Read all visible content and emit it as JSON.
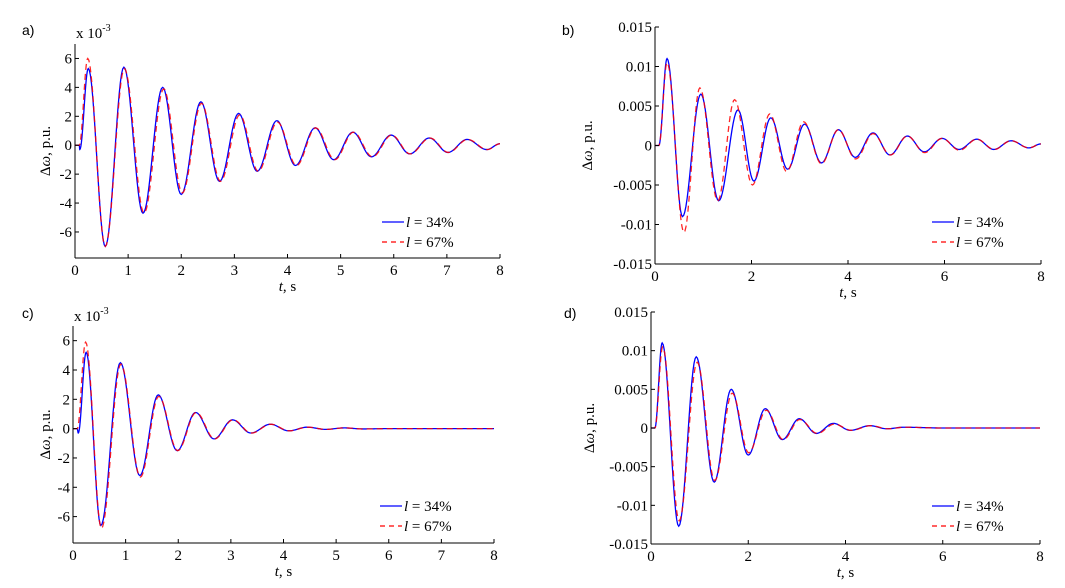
{
  "chart_data": [
    {
      "panel": "a)",
      "type": "line",
      "xlabel_italic": "t",
      "xlabel_rest": ", s",
      "ylabel_symbol": "Δω",
      "ylabel_rest": ", p.u.",
      "exponent_label": "x 10",
      "exponent": "-3",
      "xlim": [
        0,
        8
      ],
      "ylim": [
        -7.8,
        7
      ],
      "xticks": [
        0,
        1,
        2,
        3,
        4,
        5,
        6,
        7,
        8
      ],
      "yticks": [
        -6,
        -4,
        -2,
        0,
        2,
        4,
        6
      ],
      "ytick_labels": [
        "-6",
        "-4",
        "-2",
        "0",
        "2",
        "4",
        "6"
      ],
      "legend": {
        "position": "lower right",
        "entries": [
          "l = 34%",
          "l = 67%"
        ]
      },
      "series": [
        {
          "name": "l = 34%",
          "color": "#0000ff",
          "style": "solid",
          "points": [
            [
              0,
              0
            ],
            [
              0.08,
              0
            ],
            [
              0.09,
              -0.3
            ],
            [
              0.25,
              5.3
            ],
            [
              0.57,
              -7.0
            ],
            [
              0.92,
              5.4
            ],
            [
              1.28,
              -4.7
            ],
            [
              1.65,
              4.0
            ],
            [
              2.0,
              -3.4
            ],
            [
              2.37,
              3.0
            ],
            [
              2.72,
              -2.5
            ],
            [
              3.08,
              2.2
            ],
            [
              3.43,
              -1.8
            ],
            [
              3.8,
              1.7
            ],
            [
              4.15,
              -1.4
            ],
            [
              4.52,
              1.2
            ],
            [
              4.87,
              -1.0
            ],
            [
              5.23,
              0.9
            ],
            [
              5.58,
              -0.8
            ],
            [
              5.95,
              0.7
            ],
            [
              6.3,
              -0.6
            ],
            [
              6.67,
              0.5
            ],
            [
              7.02,
              -0.5
            ],
            [
              7.38,
              0.4
            ],
            [
              7.75,
              -0.3
            ],
            [
              8.0,
              0.1
            ]
          ]
        },
        {
          "name": "l = 67%",
          "color": "#ff0000",
          "style": "dashed",
          "points": [
            [
              0,
              0
            ],
            [
              0.08,
              0
            ],
            [
              0.24,
              6.0
            ],
            [
              0.57,
              -7.0
            ],
            [
              0.93,
              5.3
            ],
            [
              1.3,
              -4.7
            ],
            [
              1.67,
              3.9
            ],
            [
              2.02,
              -3.3
            ],
            [
              2.38,
              2.9
            ],
            [
              2.74,
              -2.5
            ],
            [
              3.1,
              2.1
            ],
            [
              3.45,
              -1.8
            ],
            [
              3.81,
              1.6
            ],
            [
              4.17,
              -1.4
            ],
            [
              4.53,
              1.2
            ],
            [
              4.89,
              -1.0
            ],
            [
              5.24,
              0.9
            ],
            [
              5.6,
              -0.8
            ],
            [
              5.96,
              0.7
            ],
            [
              6.31,
              -0.6
            ],
            [
              6.68,
              0.5
            ],
            [
              7.03,
              -0.5
            ],
            [
              7.39,
              0.4
            ],
            [
              7.76,
              -0.3
            ],
            [
              8.0,
              0.1
            ]
          ]
        }
      ]
    },
    {
      "panel": "b)",
      "type": "line",
      "xlabel_italic": "t",
      "xlabel_rest": ", s",
      "ylabel_symbol": "Δω",
      "ylabel_rest": ", p.u.",
      "xlim": [
        0,
        8
      ],
      "ylim": [
        -0.015,
        0.015
      ],
      "xticks": [
        0,
        2,
        4,
        6,
        8
      ],
      "yticks": [
        -0.015,
        -0.01,
        -0.005,
        0,
        0.005,
        0.01,
        0.015
      ],
      "ytick_labels": [
        "-0.015",
        "-0.01",
        "-0.005",
        "0",
        "0.005",
        "0.01",
        "0.015"
      ],
      "legend": {
        "position": "lower right",
        "entries": [
          "l = 34%",
          "l = 67%"
        ]
      },
      "series": [
        {
          "name": "l = 34%",
          "color": "#0000ff",
          "style": "solid",
          "points": [
            [
              0,
              0
            ],
            [
              0.08,
              0
            ],
            [
              0.25,
              0.011
            ],
            [
              0.57,
              -0.009
            ],
            [
              0.95,
              0.0065
            ],
            [
              1.32,
              -0.007
            ],
            [
              1.72,
              0.0045
            ],
            [
              2.05,
              -0.0045
            ],
            [
              2.4,
              0.0035
            ],
            [
              2.75,
              -0.003
            ],
            [
              3.1,
              0.0027
            ],
            [
              3.45,
              -0.0022
            ],
            [
              3.8,
              0.002
            ],
            [
              4.15,
              -0.0015
            ],
            [
              4.52,
              0.0016
            ],
            [
              4.87,
              -0.0012
            ],
            [
              5.23,
              0.0012
            ],
            [
              5.58,
              -0.0008
            ],
            [
              5.95,
              0.0009
            ],
            [
              6.3,
              -0.0005
            ],
            [
              6.67,
              0.0008
            ],
            [
              7.02,
              -0.0005
            ],
            [
              7.38,
              0.0006
            ],
            [
              7.75,
              -0.0003
            ],
            [
              8.0,
              0.0002
            ]
          ]
        },
        {
          "name": "l = 67%",
          "color": "#ff0000",
          "style": "dashed",
          "points": [
            [
              0,
              0
            ],
            [
              0.08,
              0
            ],
            [
              0.25,
              0.0105
            ],
            [
              0.6,
              -0.011
            ],
            [
              0.93,
              0.0073
            ],
            [
              1.3,
              -0.007
            ],
            [
              1.65,
              0.0058
            ],
            [
              2.02,
              -0.005
            ],
            [
              2.38,
              0.004
            ],
            [
              2.73,
              -0.0033
            ],
            [
              3.08,
              0.003
            ],
            [
              3.45,
              -0.0023
            ],
            [
              3.8,
              0.002
            ],
            [
              4.16,
              -0.0017
            ],
            [
              4.52,
              0.0015
            ],
            [
              4.88,
              -0.0012
            ],
            [
              5.23,
              0.0012
            ],
            [
              5.59,
              -0.0009
            ],
            [
              5.95,
              0.0009
            ],
            [
              6.31,
              -0.0006
            ],
            [
              6.67,
              0.0008
            ],
            [
              7.03,
              -0.0005
            ],
            [
              7.38,
              0.0006
            ],
            [
              7.75,
              -0.0003
            ],
            [
              8.0,
              0.0002
            ]
          ]
        }
      ]
    },
    {
      "panel": "c)",
      "type": "line",
      "xlabel_italic": "t",
      "xlabel_rest": ", s",
      "ylabel_symbol": "Δω",
      "ylabel_rest": ", p.u.",
      "exponent_label": "x 10",
      "exponent": "-3",
      "xlim": [
        0,
        8
      ],
      "ylim": [
        -7.8,
        7
      ],
      "xticks": [
        0,
        1,
        2,
        3,
        4,
        5,
        6,
        7,
        8
      ],
      "yticks": [
        -6,
        -4,
        -2,
        0,
        2,
        4,
        6
      ],
      "ytick_labels": [
        "-6",
        "-4",
        "-2",
        "0",
        "2",
        "4",
        "6"
      ],
      "legend": {
        "position": "lower right",
        "entries": [
          "l = 34%",
          "l = 67%"
        ]
      },
      "series": [
        {
          "name": "l = 34%",
          "color": "#0000ff",
          "style": "solid",
          "points": [
            [
              0,
              0
            ],
            [
              0.08,
              0
            ],
            [
              0.1,
              -0.3
            ],
            [
              0.25,
              5.2
            ],
            [
              0.53,
              -6.6
            ],
            [
              0.9,
              4.5
            ],
            [
              1.27,
              -3.2
            ],
            [
              1.62,
              2.3
            ],
            [
              1.98,
              -1.5
            ],
            [
              2.33,
              1.1
            ],
            [
              2.68,
              -0.7
            ],
            [
              3.03,
              0.6
            ],
            [
              3.38,
              -0.3
            ],
            [
              3.75,
              0.3
            ],
            [
              4.1,
              -0.15
            ],
            [
              4.45,
              0.1
            ],
            [
              4.8,
              -0.05
            ],
            [
              5.15,
              0.05
            ],
            [
              5.5,
              -0.02
            ],
            [
              6.0,
              0
            ],
            [
              8.0,
              0
            ]
          ]
        },
        {
          "name": "l = 67%",
          "color": "#ff0000",
          "style": "dashed",
          "points": [
            [
              0,
              0
            ],
            [
              0.08,
              0
            ],
            [
              0.24,
              5.9
            ],
            [
              0.54,
              -6.8
            ],
            [
              0.91,
              4.4
            ],
            [
              1.28,
              -3.3
            ],
            [
              1.63,
              2.2
            ],
            [
              1.99,
              -1.5
            ],
            [
              2.34,
              1.1
            ],
            [
              2.69,
              -0.7
            ],
            [
              3.04,
              0.6
            ],
            [
              3.39,
              -0.3
            ],
            [
              3.76,
              0.3
            ],
            [
              4.11,
              -0.15
            ],
            [
              4.46,
              0.1
            ],
            [
              4.81,
              -0.05
            ],
            [
              5.16,
              0.05
            ],
            [
              5.51,
              -0.02
            ],
            [
              6.0,
              0
            ],
            [
              8.0,
              0
            ]
          ]
        }
      ]
    },
    {
      "panel": "d)",
      "type": "line",
      "xlabel_italic": "t",
      "xlabel_rest": ", s",
      "ylabel_symbol": "Δω",
      "ylabel_rest": ", p.u.",
      "xlim": [
        0,
        8
      ],
      "ylim": [
        -0.015,
        0.015
      ],
      "xticks": [
        0,
        2,
        4,
        6,
        8
      ],
      "yticks": [
        -0.015,
        -0.01,
        -0.005,
        0,
        0.005,
        0.01,
        0.015
      ],
      "ytick_labels": [
        "-0.015",
        "-0.01",
        "-0.005",
        "0",
        "0.005",
        "0.01",
        "0.015"
      ],
      "legend": {
        "position": "lower right",
        "entries": [
          "l = 34%",
          "l = 67%"
        ]
      },
      "series": [
        {
          "name": "l = 34%",
          "color": "#0000ff",
          "style": "solid",
          "points": [
            [
              0,
              0
            ],
            [
              0.08,
              0
            ],
            [
              0.23,
              0.011
            ],
            [
              0.57,
              -0.0127
            ],
            [
              0.93,
              0.0092
            ],
            [
              1.3,
              -0.007
            ],
            [
              1.65,
              0.005
            ],
            [
              2.0,
              -0.0035
            ],
            [
              2.35,
              0.0025
            ],
            [
              2.7,
              -0.0015
            ],
            [
              3.05,
              0.0012
            ],
            [
              3.4,
              -0.0007
            ],
            [
              3.75,
              0.0006
            ],
            [
              4.1,
              -0.0003
            ],
            [
              4.5,
              0.0003
            ],
            [
              4.85,
              -0.0001
            ],
            [
              5.2,
              0.0001
            ],
            [
              6.0,
              0
            ],
            [
              8.0,
              0
            ]
          ]
        },
        {
          "name": "l = 67%",
          "color": "#ff0000",
          "style": "dashed",
          "points": [
            [
              0,
              0
            ],
            [
              0.08,
              0
            ],
            [
              0.24,
              0.0105
            ],
            [
              0.58,
              -0.012
            ],
            [
              0.95,
              0.0085
            ],
            [
              1.31,
              -0.0068
            ],
            [
              1.67,
              0.0045
            ],
            [
              2.01,
              -0.0032
            ],
            [
              2.37,
              0.0023
            ],
            [
              2.72,
              -0.0015
            ],
            [
              3.06,
              0.0011
            ],
            [
              3.42,
              -0.0007
            ],
            [
              3.77,
              0.0005
            ],
            [
              4.12,
              -0.0003
            ],
            [
              4.52,
              0.0003
            ],
            [
              4.87,
              -0.0001
            ],
            [
              5.22,
              0.0001
            ],
            [
              6.0,
              0
            ],
            [
              8.0,
              0
            ]
          ]
        }
      ]
    }
  ]
}
